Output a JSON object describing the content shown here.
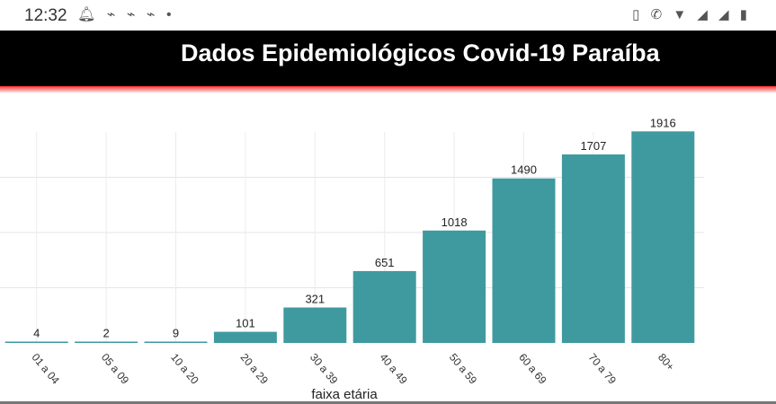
{
  "status_bar": {
    "time": "12:32",
    "notification_icons": [
      "alarm-icon",
      "broom-icon",
      "broom-icon",
      "broom-icon",
      "dot-icon"
    ],
    "system_icons": [
      "vibrate-icon",
      "4g-call-icon",
      "wifi-icon",
      "signal-icon",
      "signal-icon",
      "battery-icon"
    ]
  },
  "app_bar": {
    "title": "Dados Epidemiológicos Covid-19 Paraíba"
  },
  "colors": {
    "bar": "#3f9aa0",
    "app_bar": "#000000",
    "accent_line": "#ff3030"
  },
  "chart_data": {
    "type": "bar",
    "categories": [
      "01 a 04",
      "05 a 09",
      "10 a 20",
      "20 a 29",
      "30 a 39",
      "40 a 49",
      "50 a 59",
      "60 a 69",
      "70 a 79",
      "80+"
    ],
    "values": [
      4,
      2,
      9,
      101,
      321,
      651,
      1018,
      1490,
      1707,
      1916
    ],
    "data_labels": [
      "4",
      "2",
      "9",
      "101",
      "321",
      "651",
      "1018",
      "1490",
      "1707",
      "1916"
    ],
    "xlabel": "faixa etária",
    "ylabel": "",
    "ylim": [
      0,
      2000
    ],
    "grid": true,
    "legend": "none"
  }
}
